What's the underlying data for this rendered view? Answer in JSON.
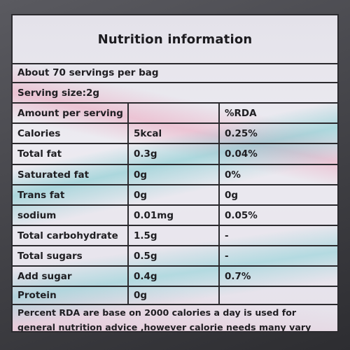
{
  "title": "Nutrition information",
  "servings_per_bag": "About 70 servings per bag",
  "serving_size": "Serving size:2g",
  "header": {
    "col1": "Amount per serving",
    "col2": "",
    "col3": "%RDA"
  },
  "rows": [
    {
      "name": "Calories",
      "amount": "5kcal",
      "rda": "0.25%"
    },
    {
      "name": "Total fat",
      "amount": "0.3g",
      "rda": "0.04%"
    },
    {
      "name": "Saturated fat",
      "amount": "0g",
      "rda": "0%"
    },
    {
      "name": "Trans fat",
      "amount": "0g",
      "rda": "0g"
    },
    {
      "name": "sodium",
      "amount": "0.01mg",
      "rda": "0.05%"
    },
    {
      "name": "Total carbohydrate",
      "amount": "1.5g",
      "rda": "-"
    },
    {
      "name": "Total sugars",
      "amount": "0.5g",
      "rda": "-"
    },
    {
      "name": "Add sugar",
      "amount": "0.4g",
      "rda": "0.7%"
    },
    {
      "name": "Protein",
      "amount": "0g",
      "rda": ""
    }
  ],
  "footnote": {
    "line1": "Percent RDA are base on 2000 calories a day is used for",
    "line2": "general nutrition advice ,however calorie needs many vary"
  }
}
